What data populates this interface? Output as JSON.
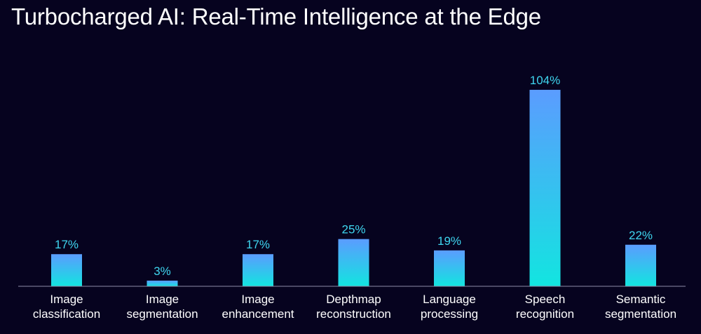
{
  "title": "Turbocharged AI: Real-Time Intelligence at the Edge",
  "colors": {
    "background": "#06031f",
    "bar_top": "#5b9cff",
    "bar_bottom": "#12e5e0",
    "value_label": "#3fd6f0",
    "axis": "#8d8ca8"
  },
  "chart_data": {
    "type": "bar",
    "categories": [
      [
        "Image",
        "classification"
      ],
      [
        "Image",
        "segmentation"
      ],
      [
        "Image",
        "enhancement"
      ],
      [
        "Depthmap",
        "reconstruction"
      ],
      [
        "Language",
        "processing"
      ],
      [
        "Speech",
        "recognition"
      ],
      [
        "Semantic",
        "segmentation"
      ]
    ],
    "values": [
      17,
      3,
      17,
      25,
      19,
      104,
      22
    ],
    "value_labels": [
      "17%",
      "3%",
      "17%",
      "25%",
      "19%",
      "104%",
      "22%"
    ],
    "unit": "%",
    "title": "Turbocharged AI: Real-Time Intelligence at the Edge",
    "xlabel": "",
    "ylabel": "",
    "ylim": [
      0,
      104
    ],
    "grid": false,
    "legend": "none"
  }
}
